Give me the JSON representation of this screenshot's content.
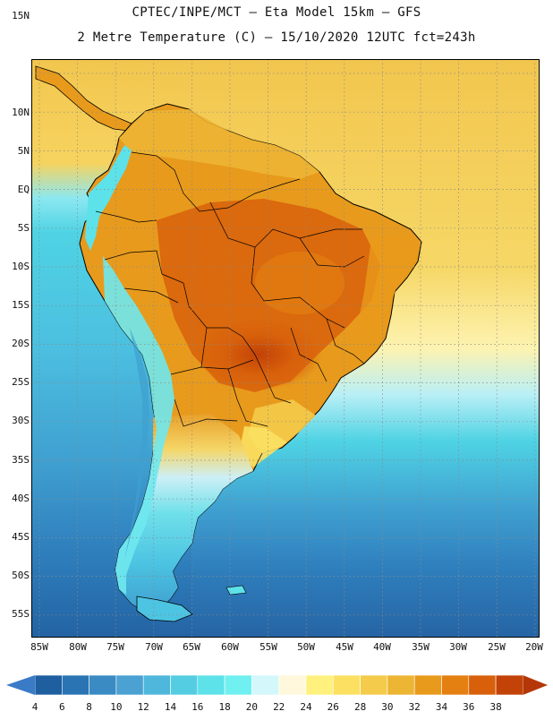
{
  "header": {
    "title_line1": "CPTEC/INPE/MCT —  Eta Model 15km — GFS",
    "title_line2": "2 Metre Temperature (C) — 15/10/2020 12UTC fct=243h"
  },
  "axes": {
    "lat_labels": [
      "15N",
      "10N",
      "5N",
      "EQ",
      "5S",
      "10S",
      "15S",
      "20S",
      "25S",
      "30S",
      "35S",
      "40S",
      "45S",
      "50S",
      "55S"
    ],
    "lon_labels": [
      "85W",
      "80W",
      "75W",
      "70W",
      "65W",
      "60W",
      "55W",
      "50W",
      "45W",
      "40W",
      "35W",
      "30W",
      "25W",
      "20W"
    ]
  },
  "colorbar": {
    "labels": [
      "4",
      "6",
      "8",
      "10",
      "12",
      "14",
      "16",
      "18",
      "20",
      "22",
      "24",
      "26",
      "28",
      "30",
      "32",
      "34",
      "36",
      "38"
    ],
    "colors": [
      "#1f5fa0",
      "#2a74b3",
      "#3a8bc4",
      "#4aa1d2",
      "#4fb7dc",
      "#54cde2",
      "#5de2ea",
      "#70f0f0",
      "#d3f7fb",
      "#fff8dc",
      "#fef17e",
      "#fbe062",
      "#f4cb4a",
      "#edb534",
      "#e89a1c",
      "#e47f11",
      "#d8600b",
      "#c24207"
    ],
    "under_color": "#3a7bc8",
    "over_color": "#b53607"
  },
  "map": {
    "ocean_warm": "#f2c64e",
    "ocean_cool": "#4cd9e8",
    "ocean_cold": "#2a6fb0",
    "land_hot": "#d8600b",
    "land_warm": "#e89a1c",
    "andes_cold": "#5de2ea",
    "border_color": "#000000"
  }
}
